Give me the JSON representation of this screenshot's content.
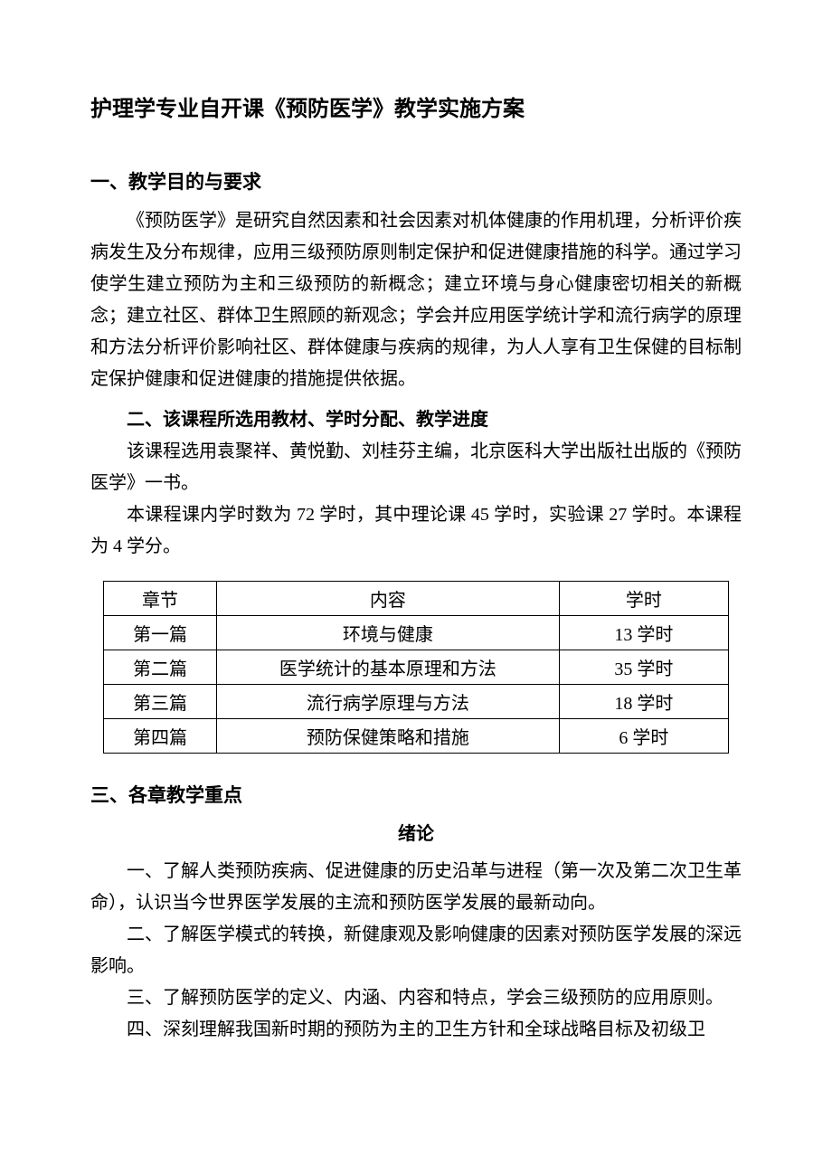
{
  "title": "护理学专业自开课《预防医学》教学实施方案",
  "section1": {
    "heading": "一、教学目的与要求",
    "paragraph1": "《预防医学》是研究自然因素和社会因素对机体健康的作用机理，分析评价疾病发生及分布规律，应用三级预防原则制定保护和促进健康措施的科学。通过学习使学生建立预防为主和三级预防的新概念；建立环境与身心健康密切相关的新概念；建立社区、群体卫生照顾的新观念；学会并应用医学统计学和流行病学的原理和方法分析评价影响社区、群体健康与疾病的规律，为人人享有卫生保健的目标制定保护健康和促进健康的措施提供依据。"
  },
  "section2": {
    "heading": "二、该课程所选用教材、学时分配、教学进度",
    "paragraph1": "该课程选用袁聚祥、黄悦勤、刘桂芬主编，北京医科大学出版社出版的《预防医学》一书。",
    "paragraph2": "本课程课内学时数为 72 学时，其中理论课 45 学时，实验课 27 学时。本课程为 4 学分。"
  },
  "table": {
    "headers": {
      "col1": "章节",
      "col2": "内容",
      "col3": "学时"
    },
    "rows": [
      {
        "col1": "第一篇",
        "col2": "环境与健康",
        "col3": "13 学时"
      },
      {
        "col1": "第二篇",
        "col2": "医学统计的基本原理和方法",
        "col3": "35 学时"
      },
      {
        "col1": "第三篇",
        "col2": "流行病学原理与方法",
        "col3": "18 学时"
      },
      {
        "col1": "第四篇",
        "col2": "预防保健策略和措施",
        "col3": "6 学时"
      }
    ]
  },
  "section3": {
    "heading": "三、各章教学重点",
    "subtitle": "绪论",
    "item1": "一、了解人类预防疾病、促进健康的历史沿革与进程（第一次及第二次卫生革命），认识当今世界医学发展的主流和预防医学发展的最新动向。",
    "item2": "二、了解医学模式的转换，新健康观及影响健康的因素对预防医学发展的深远影响。",
    "item3": "三、了解预防医学的定义、内涵、内容和特点，学会三级预防的应用原则。",
    "item4": "四、深刻理解我国新时期的预防为主的卫生方针和全球战略目标及初级卫"
  }
}
